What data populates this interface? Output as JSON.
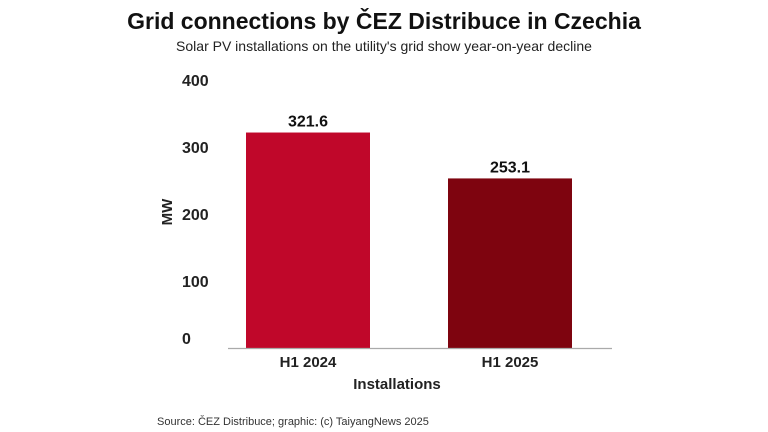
{
  "chart_data": {
    "type": "bar",
    "title": "Grid connections by ČEZ Distribuce in Czechia",
    "subtitle": "Solar PV installations on the utility's grid show year-on-year decline",
    "xlabel": "Installations",
    "ylabel": "MW",
    "categories": [
      "H1 2024",
      "H1 2025"
    ],
    "values": [
      321.6,
      253.1
    ],
    "value_labels": [
      "321.6",
      "253.1"
    ],
    "ylim": [
      0,
      400
    ],
    "yticks": [
      "0",
      "100",
      "200",
      "300",
      "400"
    ],
    "colors": [
      "#c0072a",
      "#7e040f"
    ],
    "grid": false
  },
  "source": "Source: ČEZ Distribuce; graphic: (c) TaiyangNews 2025"
}
